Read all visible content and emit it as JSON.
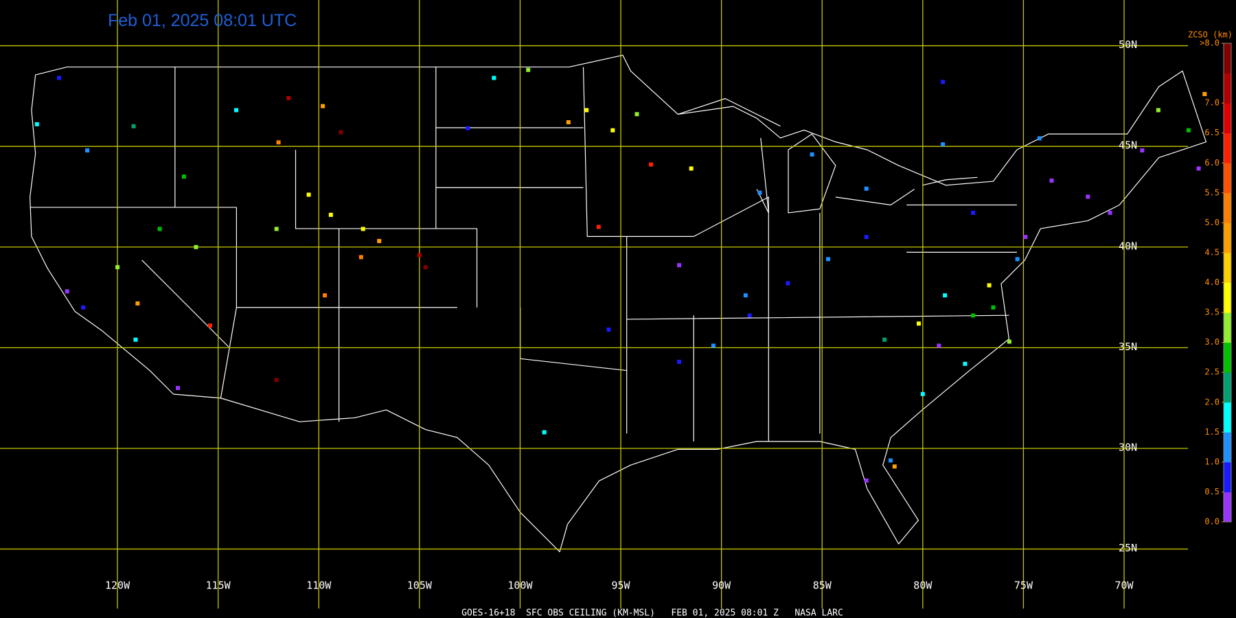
{
  "map": {
    "title": "Feb 01, 2025 08:01 UTC",
    "footer": "GOES-16+18  SFC OBS CEILING (KM-MSL)   FEB 01, 2025 08:01 Z   NASA LARC",
    "grid_color": "#c8c800",
    "lat_ticks": [
      {
        "value": 50,
        "label": "50N"
      },
      {
        "value": 45,
        "label": "45N"
      },
      {
        "value": 40,
        "label": "40N"
      },
      {
        "value": 35,
        "label": "35N"
      },
      {
        "value": 30,
        "label": "30N"
      },
      {
        "value": 25,
        "label": "25N"
      }
    ],
    "lon_ticks": [
      {
        "value": -120,
        "label": "120W"
      },
      {
        "value": -115,
        "label": "115W"
      },
      {
        "value": -110,
        "label": "110W"
      },
      {
        "value": -105,
        "label": "105W"
      },
      {
        "value": -100,
        "label": "100W"
      },
      {
        "value": -95,
        "label": "95W"
      },
      {
        "value": -90,
        "label": "90W"
      },
      {
        "value": -85,
        "label": "85W"
      },
      {
        "value": -80,
        "label": "80W"
      },
      {
        "value": -75,
        "label": "75W"
      },
      {
        "value": -70,
        "label": "70W"
      }
    ],
    "colorbar": {
      "title": "ZCSO (km)",
      "range": [
        0,
        8
      ],
      "colors": [
        "#9933ff",
        "#1a1aff",
        "#1e90ff",
        "#00ffff",
        "#00a070",
        "#00c000",
        "#90ee30",
        "#ffff00",
        "#ffd000",
        "#ffa000",
        "#ff8000",
        "#ff5000",
        "#ff2000",
        "#e00000",
        "#b00000",
        "#800000"
      ],
      "ticks": [
        {
          "value": 0,
          "label": "0.0"
        },
        {
          "value": 0.5,
          "label": "0.5"
        },
        {
          "value": 1,
          "label": "1.0"
        },
        {
          "value": 1.5,
          "label": "1.5"
        },
        {
          "value": 2,
          "label": "2.0"
        },
        {
          "value": 2.5,
          "label": "2.5"
        },
        {
          "value": 3,
          "label": "3.0"
        },
        {
          "value": 3.5,
          "label": "3.5"
        },
        {
          "value": 4,
          "label": "4.0"
        },
        {
          "value": 4.5,
          "label": "4.5"
        },
        {
          "value": 5,
          "label": "5.0"
        },
        {
          "value": 5.5,
          "label": "5.5"
        },
        {
          "value": 6,
          "label": "6.0"
        },
        {
          "value": 6.5,
          "label": "6.5"
        },
        {
          "value": 7,
          "label": "7.0"
        },
        {
          "value": 8,
          "label": ">8.0"
        }
      ]
    },
    "observations": {
      "lon": [
        -122.9,
        -124.0,
        -121.5,
        -119.2,
        -116.7,
        -114.1,
        -111.5,
        -109.8,
        -108.9,
        -112.0,
        -110.5,
        -109.4,
        -107.8,
        -107.0,
        -104.7,
        -105.0,
        -107.9,
        -109.7,
        -112.1,
        -115.4,
        -117.0,
        -121.7,
        -122.5,
        -120.0,
        -119.0,
        -119.1,
        -116.1,
        -112.1,
        -117.9,
        -98.8,
        -96.1,
        -93.5,
        -96.7,
        -95.4,
        -94.2,
        -97.6,
        -99.6,
        -101.3,
        -102.6,
        -91.5,
        -88.1,
        -85.5,
        -82.8,
        -84.7,
        -86.7,
        -90.4,
        -92.1,
        -92.1,
        -88.6,
        -80.2,
        -79.2,
        -77.5,
        -76.7,
        -76.5,
        -75.7,
        -77.9,
        -80.0,
        -81.6,
        -82.8,
        -81.4,
        -79.0,
        -74.2,
        -71.8,
        -70.7,
        -74.9,
        -75.3,
        -68.3,
        -69.1,
        -66.0,
        -66.8,
        -66.3,
        -79.0,
        -81.9,
        -78.9,
        -73.6,
        -77.5,
        -82.8,
        -88.8,
        -95.6
      ],
      "lat": [
        48.4,
        46.1,
        44.8,
        46.0,
        43.5,
        46.8,
        47.4,
        47.0,
        45.7,
        45.2,
        42.6,
        41.6,
        40.9,
        40.3,
        39.0,
        39.6,
        39.5,
        37.6,
        33.4,
        36.1,
        33.0,
        37.0,
        37.8,
        39.0,
        37.2,
        35.4,
        40.0,
        40.9,
        40.9,
        30.8,
        41.0,
        44.1,
        46.8,
        45.8,
        46.6,
        46.2,
        48.8,
        48.4,
        45.9,
        43.9,
        42.7,
        44.6,
        42.9,
        39.4,
        38.2,
        35.1,
        34.3,
        39.1,
        36.6,
        36.2,
        35.1,
        36.6,
        38.1,
        37.0,
        35.3,
        34.2,
        32.7,
        29.4,
        28.4,
        29.1,
        48.2,
        45.4,
        42.5,
        41.7,
        40.5,
        39.4,
        46.8,
        44.8,
        47.6,
        45.8,
        43.9,
        45.1,
        35.4,
        37.6,
        43.3,
        41.7,
        40.5,
        37.6,
        35.9
      ],
      "ceiling_km": [
        0.8,
        1.7,
        1.2,
        2.3,
        2.7,
        1.7,
        7.2,
        4.7,
        7.7,
        5.2,
        3.7,
        3.8,
        3.8,
        4.6,
        7.6,
        7.2,
        5.3,
        5.2,
        7.5,
        6.3,
        0.3,
        0.9,
        0.4,
        3.2,
        4.5,
        1.8,
        3.3,
        3.2,
        2.8,
        1.6,
        6.4,
        6.2,
        3.7,
        3.6,
        3.2,
        4.7,
        3.3,
        1.7,
        0.9,
        3.7,
        1.1,
        1.2,
        1.3,
        1.2,
        0.8,
        1.2,
        0.7,
        0.4,
        0.8,
        3.7,
        0.3,
        2.7,
        3.8,
        2.8,
        3.3,
        1.8,
        1.6,
        1.2,
        0.4,
        4.5,
        0.8,
        1.2,
        0.4,
        0.3,
        0.4,
        1.1,
        3.1,
        0.4,
        4.6,
        2.8,
        0.4,
        1.2,
        2.3,
        1.8,
        0.4,
        0.8,
        0.9,
        1.2,
        0.8
      ]
    }
  }
}
